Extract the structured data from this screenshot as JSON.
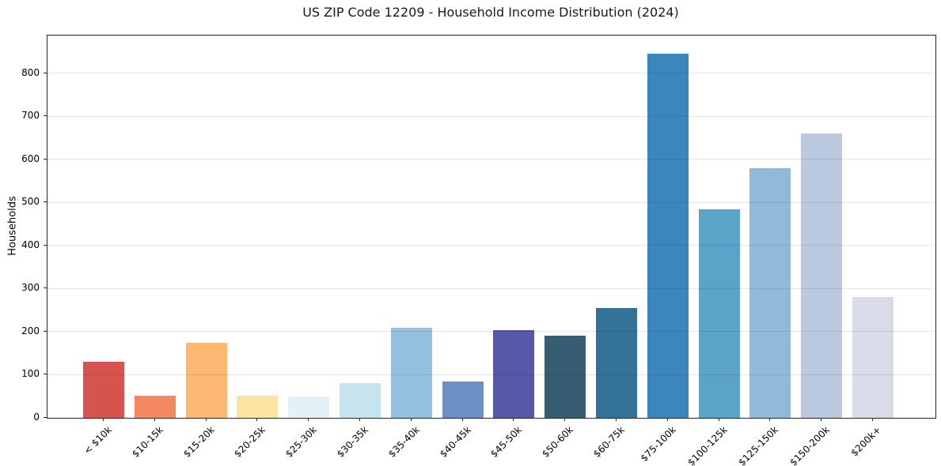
{
  "chart_data": {
    "type": "bar",
    "title": "US ZIP Code 12209 - Household Income Distribution (2024)",
    "xlabel": "",
    "ylabel": "Households",
    "categories": [
      "< $10k",
      "$10-15k",
      "$15-20k",
      "$20-25k",
      "$25-30k",
      "$30-35k",
      "$35-40k",
      "$40-45k",
      "$45-50k",
      "$50-60k",
      "$60-75k",
      "$75-100k",
      "$100-125k",
      "$125-150k",
      "$150-200k",
      "$200k+"
    ],
    "values": [
      130,
      52,
      175,
      52,
      50,
      80,
      210,
      85,
      203,
      191,
      255,
      845,
      485,
      580,
      660,
      280
    ],
    "bar_colors": [
      "#d7534f",
      "#f48961",
      "#fab873",
      "#fce5a1",
      "#e4f1f7",
      "#c6e3f0",
      "#94bfdd",
      "#6c90c5",
      "#5659a8",
      "#375d72",
      "#357297",
      "#3a86bd",
      "#5ba3c9",
      "#93b9d9",
      "#bac9e0",
      "#d9dbe8"
    ],
    "ylim": [
      0,
      888
    ],
    "yticks": [
      0,
      100,
      200,
      300,
      400,
      500,
      600,
      700,
      800
    ],
    "grid": "horizontal",
    "legend": "none",
    "x_tick_rotation": 45,
    "bar_width_fraction": 0.8
  },
  "colors": {
    "background": "#ffffff",
    "spine": "#262626",
    "gridline": "#e6e6e6",
    "text": "#000000"
  }
}
